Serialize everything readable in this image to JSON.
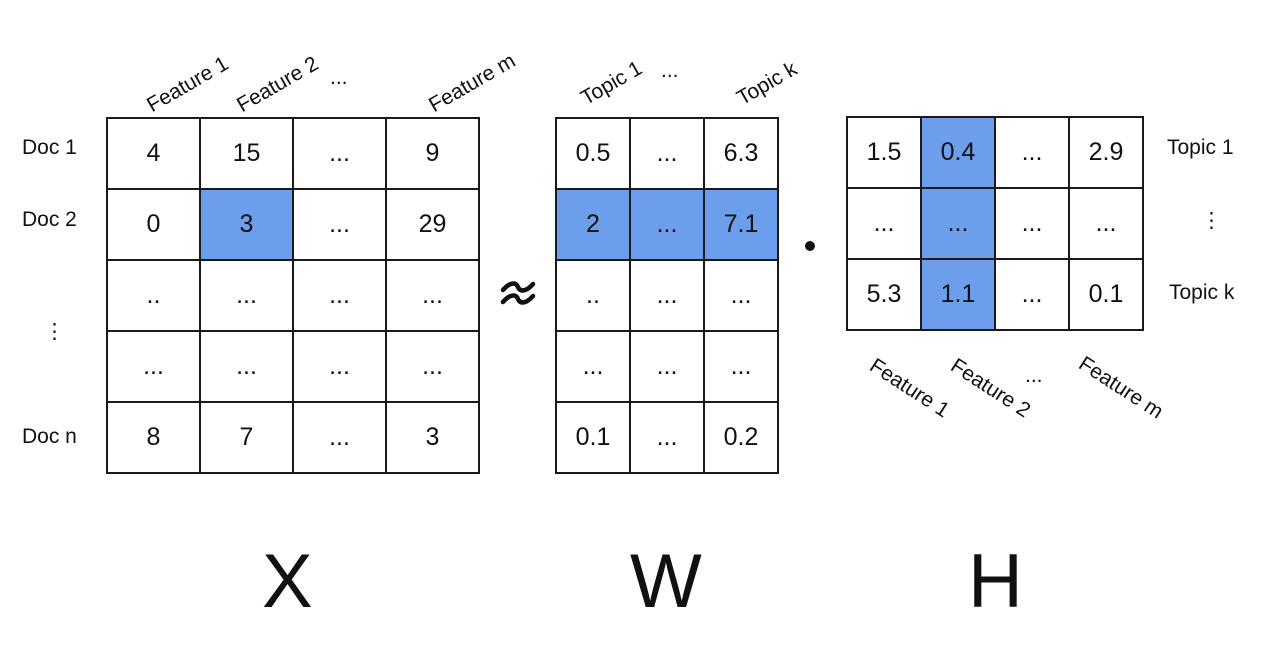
{
  "x_matrix": {
    "name": "X",
    "col_labels": [
      "Feature 1",
      "Feature 2",
      "...",
      "Feature m"
    ],
    "row_labels": [
      "Doc 1",
      "Doc 2",
      "⋮",
      "Doc n"
    ],
    "rows": [
      [
        "4",
        "15",
        "...",
        "9"
      ],
      [
        "0",
        "3",
        "...",
        "29"
      ],
      [
        "..",
        "...",
        "...",
        "..."
      ],
      [
        "...",
        "...",
        "...",
        "..."
      ],
      [
        "8",
        "7",
        "...",
        "3"
      ]
    ]
  },
  "w_matrix": {
    "name": "W",
    "col_labels": [
      "Topic 1",
      "...",
      "Topic k"
    ],
    "rows": [
      [
        "0.5",
        "...",
        "6.3"
      ],
      [
        "2",
        "...",
        "7.1"
      ],
      [
        "..",
        "...",
        "..."
      ],
      [
        "...",
        "...",
        "..."
      ],
      [
        "0.1",
        "...",
        "0.2"
      ]
    ]
  },
  "h_matrix": {
    "name": "H",
    "row_labels": [
      "Topic 1",
      "⋮",
      "Topic k"
    ],
    "col_labels": [
      "Feature 1",
      "Feature 2",
      "...",
      "Feature m"
    ],
    "rows": [
      [
        "1.5",
        "0.4",
        "...",
        "2.9"
      ],
      [
        "...",
        "...",
        "...",
        "..."
      ],
      [
        "5.3",
        "1.1",
        "...",
        "0.1"
      ]
    ]
  },
  "operators": {
    "approx": "≈",
    "dot": "•"
  },
  "colors": {
    "highlight": "#6d9eeb",
    "border": "#1a1a1a"
  }
}
